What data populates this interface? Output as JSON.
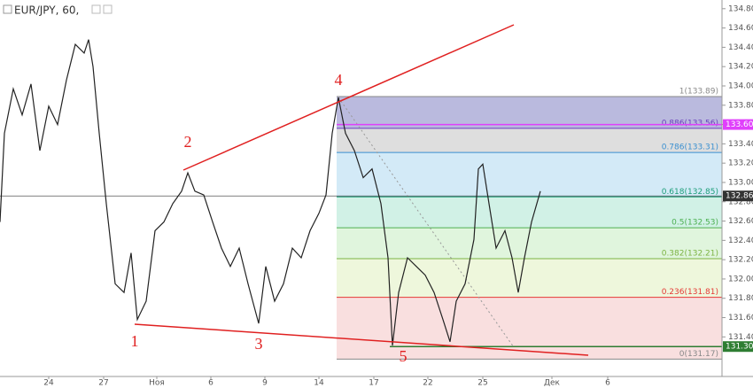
{
  "chart_data": {
    "type": "line",
    "title": "EUR/JPY, 60,",
    "series": [
      {
        "name": "EUR/JPY",
        "color": "#222222",
        "x": [
          0,
          1,
          3,
          5,
          7,
          9,
          11,
          13,
          15,
          17,
          19,
          20,
          21,
          22.4,
          24,
          26,
          28,
          29.6,
          31,
          33,
          35,
          37,
          39,
          41,
          42.4,
          44,
          46,
          48,
          50,
          52,
          54,
          56,
          58.4,
          60,
          62,
          64,
          66,
          68,
          70,
          72,
          73.6,
          75,
          76.4,
          78,
          80,
          82,
          84,
          86,
          87.6,
          88.6,
          90,
          92,
          94,
          96,
          98,
          100,
          101.6,
          103,
          105,
          107,
          108,
          109,
          110.4,
          112,
          114,
          115.6,
          117,
          118.4,
          120,
          122
        ],
        "values": [
          132.59,
          133.51,
          133.97,
          133.7,
          134.02,
          133.33,
          133.79,
          133.6,
          134.06,
          134.43,
          134.34,
          134.48,
          134.2,
          133.51,
          132.78,
          131.95,
          131.86,
          132.27,
          131.58,
          131.77,
          132.5,
          132.59,
          132.78,
          132.91,
          133.1,
          132.91,
          132.87,
          132.59,
          132.32,
          132.13,
          132.32,
          131.95,
          131.54,
          132.13,
          131.77,
          131.95,
          132.32,
          132.22,
          132.5,
          132.68,
          132.87,
          133.51,
          133.88,
          133.51,
          133.33,
          133.05,
          133.14,
          132.78,
          132.22,
          131.31,
          131.86,
          132.22,
          132.13,
          132.04,
          131.86,
          131.58,
          131.35,
          131.77,
          131.95,
          132.41,
          133.14,
          133.19,
          132.78,
          132.32,
          132.5,
          132.22,
          131.86,
          132.22,
          132.59,
          132.91
        ]
      }
    ],
    "xlim": [
      0,
      163
    ],
    "ylim": [
      130.99,
      134.89
    ],
    "xticks": [
      {
        "value": 11,
        "label": "24"
      },
      {
        "value": 23.4,
        "label": "27"
      },
      {
        "value": 35.4,
        "label": "Ноя"
      },
      {
        "value": 47.6,
        "label": "6"
      },
      {
        "value": 59.8,
        "label": "9"
      },
      {
        "value": 72,
        "label": "14"
      },
      {
        "value": 84.4,
        "label": "17"
      },
      {
        "value": 96.6,
        "label": "22"
      },
      {
        "value": 109,
        "label": "25"
      },
      {
        "value": 124.6,
        "label": "Дек"
      },
      {
        "value": 137.2,
        "label": "6"
      }
    ],
    "yticks": [
      {
        "value": 131.4,
        "label": "131.40"
      },
      {
        "value": 131.6,
        "label": "131.60"
      },
      {
        "value": 131.8,
        "label": "131.80"
      },
      {
        "value": 132,
        "label": "132.00"
      },
      {
        "value": 132.2,
        "label": "132.20"
      },
      {
        "value": 132.4,
        "label": "132.40"
      },
      {
        "value": 132.6,
        "label": "132.60"
      },
      {
        "value": 132.8,
        "label": "132.80"
      },
      {
        "value": 133,
        "label": "133.00"
      },
      {
        "value": 133.2,
        "label": "133.20"
      },
      {
        "value": 133.4,
        "label": "133.40"
      },
      {
        "value": 133.6,
        "label": "133.60"
      },
      {
        "value": 133.8,
        "label": "133.80"
      },
      {
        "value": 134,
        "label": "134.00"
      },
      {
        "value": 134.2,
        "label": "134.20"
      },
      {
        "value": 134.4,
        "label": "134.40"
      },
      {
        "value": 134.6,
        "label": "134.60"
      },
      {
        "value": 134.8,
        "label": "134.80"
      }
    ],
    "fib_levels": [
      {
        "value": 133.89,
        "label": "1(133.89)",
        "color": "#888888",
        "fill": "#8c8cc8"
      },
      {
        "value": 133.56,
        "label": "0.886(133.56)",
        "color": "#6a3fbf",
        "fill": "#c8c8c8"
      },
      {
        "value": 133.31,
        "label": "0.786(133.31)",
        "color": "#3a8fd0",
        "fill": "#b6dcf2"
      },
      {
        "value": 132.85,
        "label": "0.618(132.85)",
        "color": "#1e9e7a",
        "fill": "#b3e8d6"
      },
      {
        "value": 132.53,
        "label": "0.5(132.53)",
        "color": "#4caf50",
        "fill": "#ccefc6"
      },
      {
        "value": 132.21,
        "label": "0.382(132.21)",
        "color": "#7cb342",
        "fill": "#e3f1c4"
      },
      {
        "value": 131.81,
        "label": "0.236(131.81)",
        "color": "#e53935",
        "fill": "#f5c9c9"
      },
      {
        "value": 131.17,
        "label": "0(131.17)",
        "color": "#888888"
      }
    ],
    "price_labels": [
      {
        "value": 133.6,
        "label": "133.60",
        "color": "#e040fb"
      },
      {
        "value": 132.86,
        "label": "132.86",
        "color": "#333333"
      },
      {
        "value": 131.3,
        "label": "131.30",
        "color": "#2e7d32"
      }
    ],
    "annotations": [
      "1",
      "2",
      "3",
      "4",
      "5"
    ]
  }
}
